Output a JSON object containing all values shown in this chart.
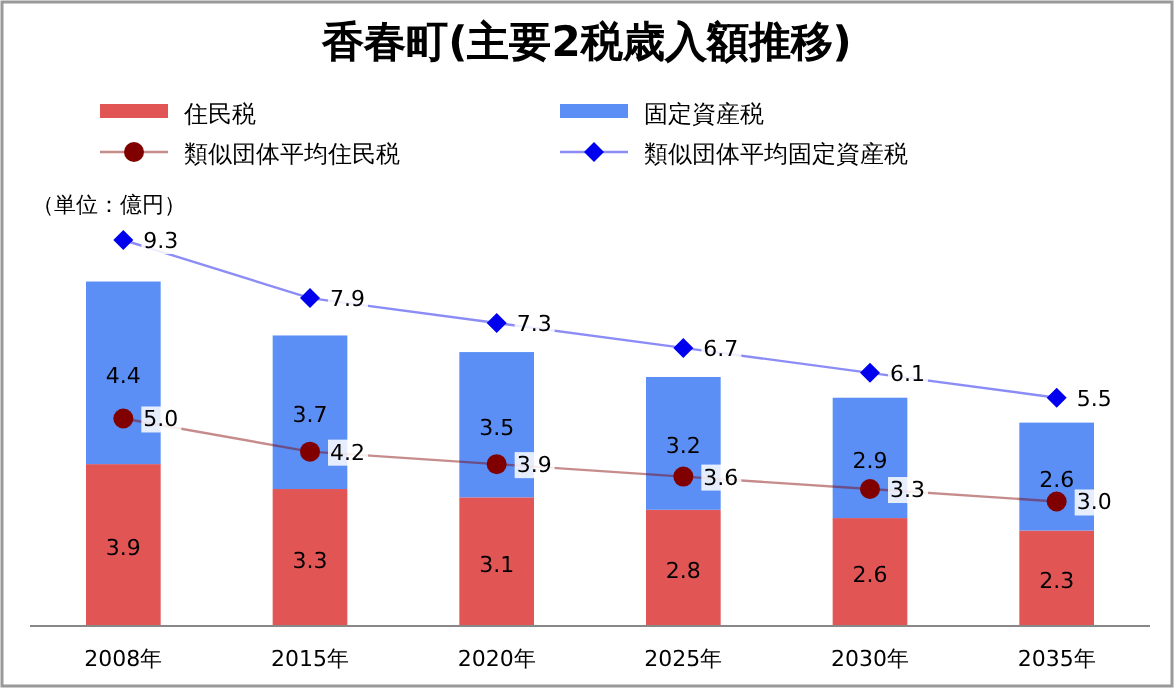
{
  "chart_data": {
    "type": "bar",
    "title": "香春町(主要2税歳入額推移)",
    "stacked": true,
    "legend": "top",
    "annotations": [
      "（単位：億円）"
    ],
    "categories": [
      "2008年",
      "2015年",
      "2020年",
      "2025年",
      "2030年",
      "2035年"
    ],
    "series": [
      {
        "name": "住民税",
        "color": "#e25555",
        "values": [
          3.9,
          3.3,
          3.1,
          2.8,
          2.6,
          2.3
        ],
        "value_labels": [
          "3.9",
          "3.3",
          "3.1",
          "2.8",
          "2.6",
          "2.3"
        ]
      },
      {
        "name": "固定資産税",
        "color": "#5b8ff5",
        "values": [
          4.4,
          3.7,
          3.5,
          3.2,
          2.9,
          2.6
        ],
        "value_labels": [
          "4.4",
          "3.7",
          "3.5",
          "3.2",
          "2.9",
          "2.6"
        ]
      },
      {
        "name": "類似団体平均住民税",
        "type": "line",
        "marker": "circle",
        "color": "#800000",
        "values": [
          5.0,
          4.2,
          3.9,
          3.6,
          3.3,
          3.0
        ],
        "value_labels": [
          "5.0",
          "4.2",
          "3.9",
          "3.6",
          "3.3",
          "3.0"
        ]
      },
      {
        "name": "類似団体平均固定資産税",
        "type": "line",
        "marker": "diamond",
        "color": "#0000ee",
        "values": [
          9.3,
          7.9,
          7.3,
          6.7,
          6.1,
          5.5
        ],
        "value_labels": [
          "9.3",
          "7.9",
          "7.3",
          "6.7",
          "6.1",
          "5.5"
        ]
      }
    ]
  }
}
